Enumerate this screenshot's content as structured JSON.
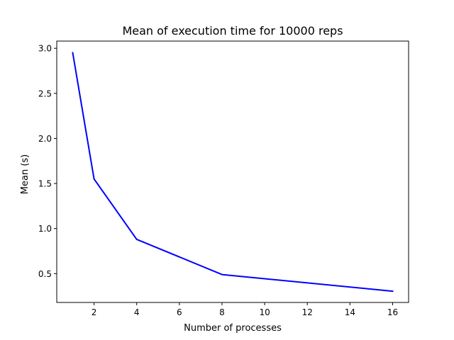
{
  "chart_data": {
    "type": "line",
    "title": "Mean of execution time for 10000 reps",
    "xlabel": "Number of processes",
    "ylabel": "Mean (s)",
    "xlim": [
      0.25,
      16.75
    ],
    "ylim": [
      0.18,
      3.08
    ],
    "xticks": [
      2,
      4,
      6,
      8,
      10,
      12,
      14,
      16
    ],
    "yticks": [
      0.5,
      1.0,
      1.5,
      2.0,
      2.5,
      3.0
    ],
    "xtick_labels": [
      "2",
      "4",
      "6",
      "8",
      "10",
      "12",
      "14",
      "16"
    ],
    "ytick_labels": [
      "0.5",
      "1.0",
      "1.5",
      "2.0",
      "2.5",
      "3.0"
    ],
    "grid": false,
    "legend": "none",
    "series": [
      {
        "color": "#0000ff",
        "x": [
          1,
          2,
          4,
          8,
          16
        ],
        "y": [
          2.95,
          1.55,
          0.88,
          0.49,
          0.305
        ]
      }
    ]
  }
}
